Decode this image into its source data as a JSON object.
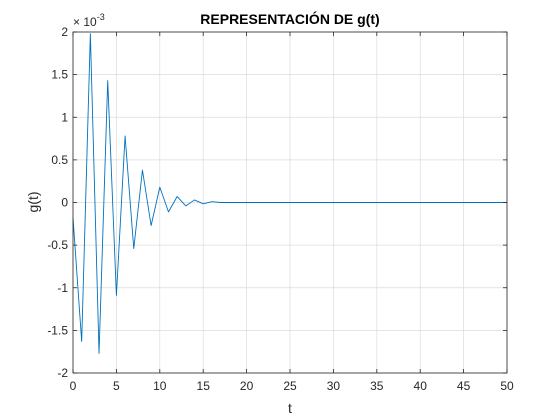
{
  "chart_data": {
    "type": "line",
    "title": "REPRESENTACIÓN DE g(t)",
    "xlabel": "t",
    "ylabel": "g(t)",
    "xlim": [
      0,
      50
    ],
    "ylim": [
      -2,
      2
    ],
    "y_exponent_base": "× 10",
    "y_exponent_power": "-3",
    "grid": true,
    "x_ticks": [
      0,
      5,
      10,
      15,
      20,
      25,
      30,
      35,
      40,
      45,
      50
    ],
    "x_tick_labels": [
      "0",
      "5",
      "10",
      "15",
      "20",
      "25",
      "30",
      "35",
      "40",
      "45",
      "50"
    ],
    "y_ticks": [
      -2,
      -1.5,
      -1,
      -0.5,
      0,
      0.5,
      1,
      1.5,
      2
    ],
    "y_tick_labels": [
      "-2",
      "-1.5",
      "-1",
      "-0.5",
      "0",
      "0.5",
      "1",
      "1.5",
      "2"
    ],
    "series": [
      {
        "color": "#0072bd",
        "x": [
          0,
          1,
          2,
          3,
          4,
          5,
          6,
          7,
          8,
          9,
          10,
          11,
          12,
          13,
          14,
          15,
          16,
          17,
          18,
          50
        ],
        "y": [
          -0.18,
          -1.63,
          1.98,
          -1.77,
          1.43,
          -1.09,
          0.78,
          -0.54,
          0.38,
          -0.27,
          0.18,
          -0.11,
          0.07,
          -0.04,
          0.03,
          -0.015,
          0.01,
          0,
          0,
          0
        ]
      }
    ]
  }
}
